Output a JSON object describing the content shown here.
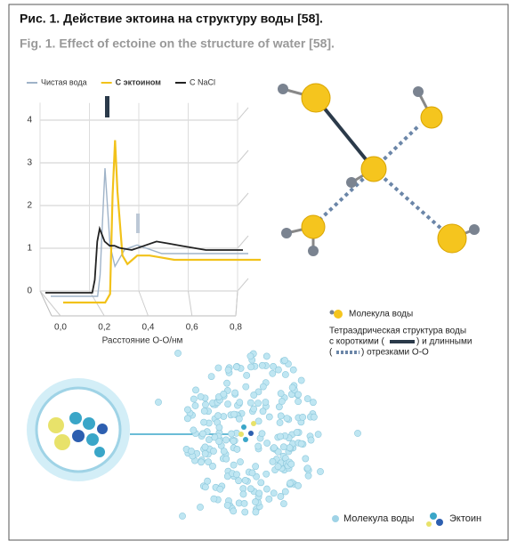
{
  "caption": {
    "title": "Рис. 1. Действие эктоина на структуру воды [58].",
    "subtitle": "Fig. 1. Effect of ectoine on the structure of water [58]."
  },
  "chart_data": {
    "type": "line",
    "x": [
      0,
      0.1,
      0.17,
      0.19,
      0.2,
      0.21,
      0.22,
      0.24,
      0.26,
      0.28,
      0.3,
      0.35,
      0.4,
      0.45,
      0.5,
      0.55,
      0.6,
      0.65,
      0.7,
      0.75,
      0.8
    ],
    "series": [
      {
        "name": "Чистая вода",
        "color": "#9fb3c8",
        "values": [
          0,
          0,
          0,
          0,
          0.5,
          1.8,
          3.0,
          1.2,
          0.7,
          0.9,
          1.1,
          1.2,
          1.1,
          1.0,
          1.0,
          1.0,
          1.0,
          1.0,
          1.0,
          1.0,
          1.0
        ]
      },
      {
        "name": "С эктоином",
        "color": "#f2c21a",
        "values": [
          0,
          0,
          0,
          0.2,
          2.5,
          3.8,
          2.6,
          1.1,
          0.9,
          1.0,
          1.1,
          1.1,
          1.05,
          1.0,
          1.0,
          1.0,
          1.0,
          1.0,
          1.0,
          1.0,
          1.0
        ]
      },
      {
        "name": "С NaCl",
        "color": "#222222",
        "values": [
          0,
          0,
          0,
          0,
          0.3,
          1.2,
          1.5,
          1.2,
          1.1,
          1.1,
          1.05,
          1.0,
          1.1,
          1.2,
          1.15,
          1.1,
          1.05,
          1.0,
          1.0,
          1.0,
          1.0
        ]
      }
    ],
    "xlim": [
      0,
      0.8
    ],
    "xticks": [
      {
        "value": 0,
        "label": "0,0"
      },
      {
        "value": 0.2,
        "label": "0,2"
      },
      {
        "value": 0.4,
        "label": "0,4"
      },
      {
        "value": 0.6,
        "label": "0,6"
      },
      {
        "value": 0.8,
        "label": "0,8"
      }
    ],
    "ylim": [
      0,
      4.4
    ],
    "yticks": [
      0,
      1,
      2,
      3,
      4
    ],
    "grid": true,
    "x_label": "Расстояние О-О/нм"
  },
  "legend_top": {
    "water": "Молекула воды",
    "structure": [
      "Тетраэдрическая структура воды",
      "с короткими (",
      ") и длинными",
      "(",
      ") отрезками О-О"
    ]
  },
  "legend_bottom": {
    "water": "Молекула воды",
    "ectoine": "Эктоин"
  }
}
